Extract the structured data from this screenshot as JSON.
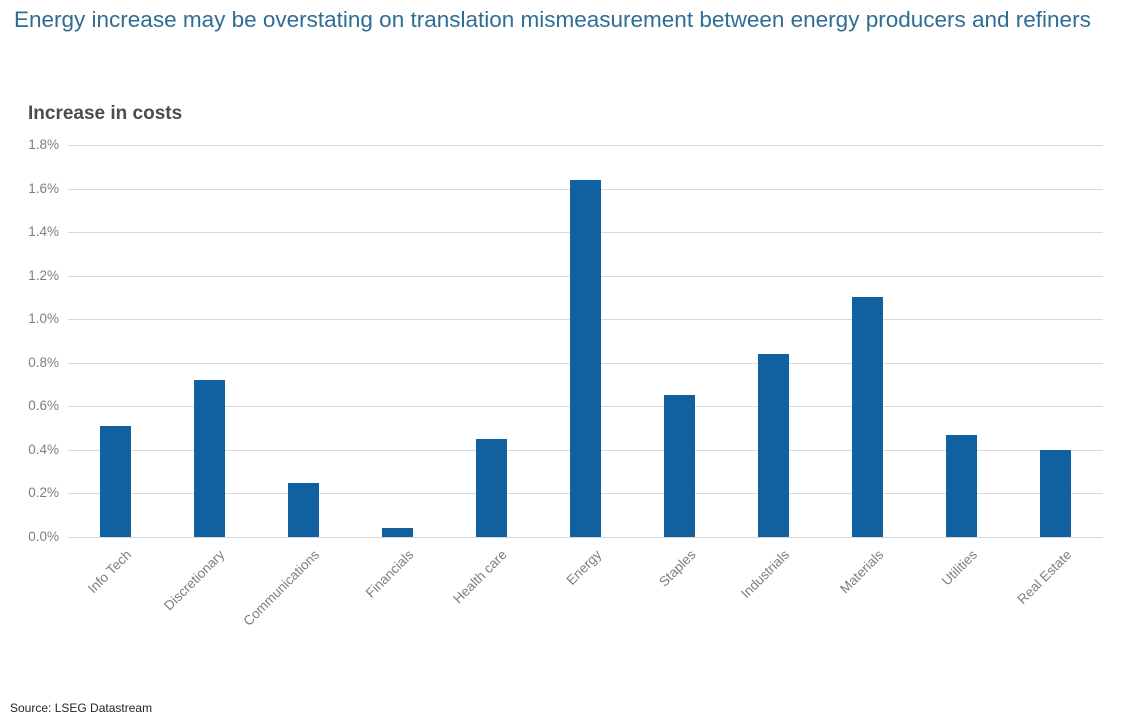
{
  "header": {
    "title": "Energy increase may be overstating on translation mismeasurement between energy producers and refiners"
  },
  "chart_data": {
    "type": "bar",
    "title": "Increase in costs",
    "categories": [
      "Info Tech",
      "Discretionary",
      "Communications",
      "Financials",
      "Health care",
      "Energy",
      "Staples",
      "Industrials",
      "Materials",
      "Utilities",
      "Real Estate"
    ],
    "values": [
      0.51,
      0.72,
      0.25,
      0.04,
      0.45,
      1.64,
      0.65,
      0.84,
      1.1,
      0.47,
      0.4
    ],
    "unit": "%",
    "xlabel": "",
    "ylabel": "",
    "ylim": [
      0,
      1.8
    ],
    "ytick_step": 0.2,
    "ytick_labels": [
      "0.0%",
      "0.2%",
      "0.4%",
      "0.6%",
      "0.8%",
      "1.0%",
      "1.2%",
      "1.4%",
      "1.6%",
      "1.8%"
    ],
    "grid": true,
    "legend": "none",
    "bar_color": "#1160a0",
    "x_label_rotation_deg": -45
  },
  "footer": {
    "source": "Source: LSEG Datastream"
  },
  "colors": {
    "page_title_text": "#2f6d94",
    "chart_title_text": "#4c4c4c",
    "axis_text": "#7f7f7f",
    "gridline": "#d9d9d9",
    "bar": "#1160a0",
    "source_text": "#262626",
    "background": "#ffffff"
  }
}
